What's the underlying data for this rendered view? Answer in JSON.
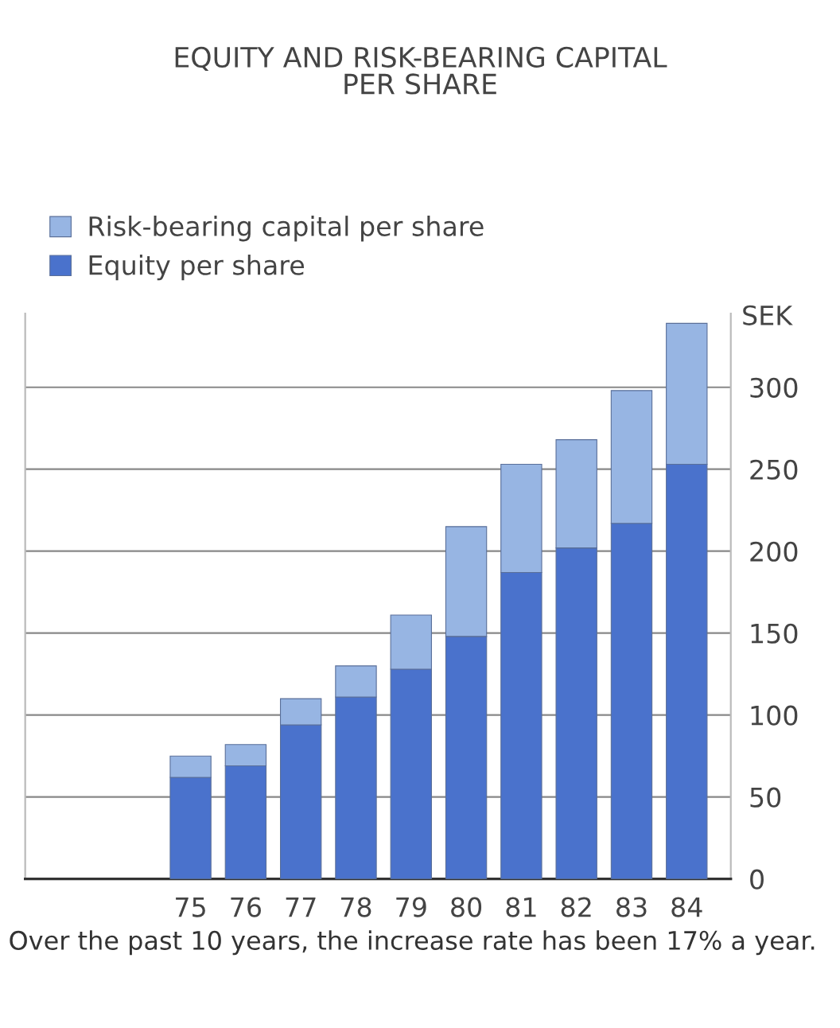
{
  "chart_data": {
    "type": "bar",
    "title": "EQUITY AND RISK-BEARING CAPITAL\nPER SHARE",
    "categories": [
      "75",
      "76",
      "77",
      "78",
      "79",
      "80",
      "81",
      "82",
      "83",
      "84"
    ],
    "stacked": true,
    "series": [
      {
        "name": "Equity per share",
        "color": "#4a72cc",
        "values": [
          62,
          69,
          94,
          111,
          128,
          148,
          187,
          202,
          217,
          253
        ]
      },
      {
        "name": "Risk-bearing capital per share",
        "color": "#97b5e3",
        "values": [
          13,
          13,
          16,
          19,
          33,
          67,
          66,
          66,
          81,
          86
        ]
      }
    ],
    "ylabel": "SEK",
    "ylim": [
      0,
      345
    ],
    "yticks": [
      0,
      50,
      100,
      150,
      200,
      250,
      300
    ],
    "grid": "y",
    "legend": "top left",
    "annotations": [
      "Over the past 10 years, the increase rate has been 17% a year."
    ]
  }
}
